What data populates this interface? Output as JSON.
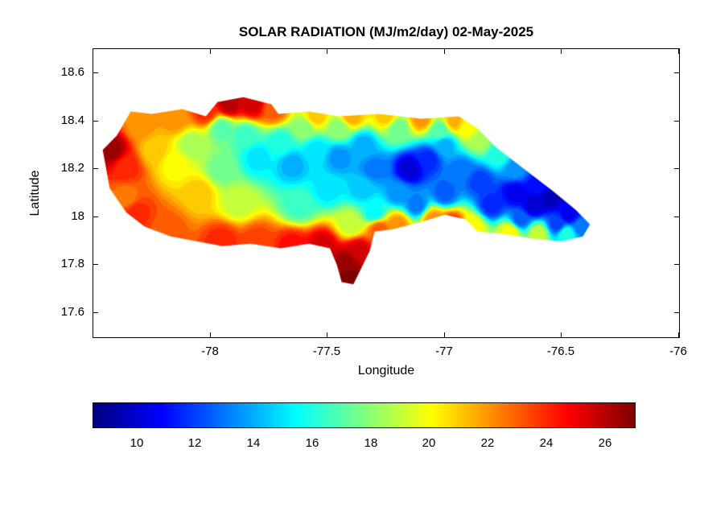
{
  "chart_data": {
    "type": "heatmap",
    "title": "SOLAR RADIATION (MJ/m2/day) 02-May-2025",
    "xlabel": "Longitude",
    "ylabel": "Latitude",
    "xlim": [
      -78.5,
      -76.0
    ],
    "ylim": [
      17.5,
      18.7
    ],
    "x_tick_values": [
      -78,
      -77.5,
      -77,
      -76.5,
      -76
    ],
    "x_tick_labels": [
      "-78",
      "-77.5",
      "-77",
      "-76.5",
      "-76"
    ],
    "y_tick_values": [
      17.6,
      17.8,
      18,
      18.2,
      18.4,
      18.6
    ],
    "y_tick_labels": [
      "17.6",
      "17.8",
      "18",
      "18.2",
      "18.4",
      "18.6"
    ],
    "colorbar": {
      "orientation": "horizontal",
      "colormap": "jet",
      "range": [
        8.5,
        27
      ],
      "tick_values": [
        10,
        12,
        14,
        16,
        18,
        20,
        22,
        24,
        26
      ],
      "tick_labels": [
        "10",
        "12",
        "14",
        "16",
        "18",
        "20",
        "22",
        "24",
        "26"
      ]
    },
    "contour_level_step": 0.5,
    "island_outline_lonlat": [
      [
        -78.46,
        18.28
      ],
      [
        -78.4,
        18.34
      ],
      [
        -78.34,
        18.44
      ],
      [
        -78.25,
        18.43
      ],
      [
        -78.12,
        18.45
      ],
      [
        -78.02,
        18.42
      ],
      [
        -77.97,
        18.48
      ],
      [
        -77.86,
        18.5
      ],
      [
        -77.74,
        18.47
      ],
      [
        -77.71,
        18.43
      ],
      [
        -77.58,
        18.44
      ],
      [
        -77.45,
        18.42
      ],
      [
        -77.28,
        18.43
      ],
      [
        -77.1,
        18.41
      ],
      [
        -76.94,
        18.42
      ],
      [
        -76.86,
        18.37
      ],
      [
        -76.78,
        18.29
      ],
      [
        -76.66,
        18.2
      ],
      [
        -76.54,
        18.11
      ],
      [
        -76.44,
        18.03
      ],
      [
        -76.38,
        17.97
      ],
      [
        -76.41,
        17.92
      ],
      [
        -76.5,
        17.9
      ],
      [
        -76.62,
        17.91
      ],
      [
        -76.75,
        17.93
      ],
      [
        -76.86,
        17.94
      ],
      [
        -76.91,
        17.99
      ],
      [
        -77.0,
        18.01
      ],
      [
        -77.1,
        17.98
      ],
      [
        -77.22,
        17.95
      ],
      [
        -77.3,
        17.94
      ],
      [
        -77.32,
        17.86
      ],
      [
        -77.36,
        17.78
      ],
      [
        -77.39,
        17.72
      ],
      [
        -77.44,
        17.73
      ],
      [
        -77.46,
        17.8
      ],
      [
        -77.49,
        17.87
      ],
      [
        -77.58,
        17.89
      ],
      [
        -77.7,
        17.87
      ],
      [
        -77.83,
        17.89
      ],
      [
        -77.95,
        17.88
      ],
      [
        -78.06,
        17.9
      ],
      [
        -78.17,
        17.92
      ],
      [
        -78.28,
        17.96
      ],
      [
        -78.36,
        18.02
      ],
      [
        -78.43,
        18.12
      ]
    ],
    "samples_lon_lat_value": [
      [
        -78.42,
        18.28,
        26.5
      ],
      [
        -78.36,
        18.21,
        24
      ],
      [
        -78.3,
        18.38,
        22
      ],
      [
        -78.24,
        18.28,
        21
      ],
      [
        -78.36,
        18.08,
        22.5
      ],
      [
        -78.15,
        18.41,
        22
      ],
      [
        -78.02,
        18.44,
        24
      ],
      [
        -78.32,
        18.02,
        24
      ],
      [
        -78.18,
        17.95,
        23
      ],
      [
        -78.15,
        18.22,
        20
      ],
      [
        -78.05,
        18.1,
        21
      ],
      [
        -78.08,
        18.3,
        18.5
      ],
      [
        -77.92,
        18.47,
        26
      ],
      [
        -77.82,
        18.47,
        25.5
      ],
      [
        -77.73,
        18.45,
        23
      ],
      [
        -77.95,
        18.37,
        17
      ],
      [
        -77.85,
        18.34,
        16.5
      ],
      [
        -77.95,
        18.2,
        17.5
      ],
      [
        -77.88,
        18.06,
        19
      ],
      [
        -77.55,
        18.42,
        21
      ],
      [
        -77.4,
        18.42,
        21.5
      ],
      [
        -77.25,
        18.42,
        21
      ],
      [
        -77.1,
        18.41,
        22
      ],
      [
        -76.96,
        18.4,
        21.5
      ],
      [
        -77.6,
        18.37,
        18
      ],
      [
        -77.45,
        18.37,
        18
      ],
      [
        -77.2,
        18.37,
        17.5
      ],
      [
        -77.02,
        18.36,
        17
      ],
      [
        -77.8,
        18.25,
        15
      ],
      [
        -77.7,
        18.31,
        16
      ],
      [
        -77.65,
        18.22,
        14
      ],
      [
        -77.55,
        18.28,
        15
      ],
      [
        -77.45,
        18.25,
        13.5
      ],
      [
        -77.35,
        18.3,
        14
      ],
      [
        -77.3,
        18.2,
        13
      ],
      [
        -77.15,
        18.2,
        10
      ],
      [
        -77.07,
        18.24,
        11.5
      ],
      [
        -77.0,
        18.3,
        14
      ],
      [
        -77.35,
        18.12,
        14.5
      ],
      [
        -77.2,
        18.1,
        13.5
      ],
      [
        -77.5,
        18.12,
        15
      ],
      [
        -77.62,
        18.05,
        16.5
      ],
      [
        -77.3,
        18.02,
        15.5
      ],
      [
        -77.12,
        18.05,
        13
      ],
      [
        -77.0,
        18.1,
        12.5
      ],
      [
        -76.93,
        18.2,
        13
      ],
      [
        -77.95,
        17.9,
        24
      ],
      [
        -77.8,
        17.9,
        23.5
      ],
      [
        -77.65,
        17.88,
        24.5
      ],
      [
        -77.52,
        17.88,
        25.5
      ],
      [
        -77.4,
        17.97,
        19
      ],
      [
        -77.4,
        17.75,
        27
      ],
      [
        -77.42,
        17.81,
        26.5
      ],
      [
        -77.37,
        17.86,
        25.5
      ],
      [
        -77.28,
        17.95,
        23
      ],
      [
        -77.2,
        17.97,
        22
      ],
      [
        -77.05,
        17.99,
        22
      ],
      [
        -76.97,
        17.97,
        24
      ],
      [
        -76.88,
        17.96,
        20
      ],
      [
        -76.72,
        17.94,
        20
      ],
      [
        -76.6,
        17.93,
        19
      ],
      [
        -76.48,
        17.93,
        16
      ],
      [
        -76.85,
        18.15,
        12
      ],
      [
        -76.8,
        18.05,
        11.5
      ],
      [
        -76.7,
        18.1,
        10.5
      ],
      [
        -76.62,
        18.05,
        10
      ],
      [
        -76.55,
        18.08,
        9.5
      ],
      [
        -76.47,
        18.01,
        10.5
      ],
      [
        -76.42,
        17.96,
        13
      ],
      [
        -76.52,
        17.97,
        12
      ],
      [
        -76.68,
        17.99,
        12.5
      ],
      [
        -76.6,
        18.13,
        11
      ],
      [
        -76.7,
        18.2,
        13.5
      ],
      [
        -76.77,
        18.26,
        16
      ],
      [
        -76.85,
        18.32,
        18.5
      ],
      [
        -76.9,
        18.37,
        20
      ]
    ]
  }
}
